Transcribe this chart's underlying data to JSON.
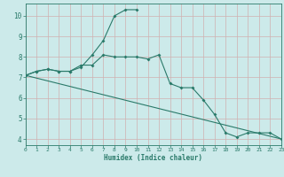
{
  "line1_x": [
    0,
    1,
    2,
    3,
    4,
    5,
    6,
    7,
    8,
    9,
    10,
    11,
    12,
    13,
    14,
    15,
    16,
    17,
    18,
    19,
    20,
    21,
    22,
    23
  ],
  "line1_y": [
    7.1,
    7.3,
    7.4,
    7.3,
    7.3,
    7.6,
    7.6,
    8.1,
    8.0,
    8.0,
    8.0,
    7.9,
    8.1,
    6.7,
    6.5,
    6.5,
    5.9,
    5.2,
    4.3,
    4.1,
    4.3,
    4.3,
    4.3,
    4.0
  ],
  "line2_x": [
    0,
    1,
    2,
    3,
    4,
    5,
    6,
    7,
    8,
    9,
    10
  ],
  "line2_y": [
    7.1,
    7.3,
    7.4,
    7.3,
    7.3,
    7.5,
    8.1,
    8.8,
    10.0,
    10.3,
    10.3
  ],
  "line3_x": [
    0,
    23
  ],
  "line3_y": [
    7.1,
    4.0
  ],
  "color": "#2a7a6a",
  "bg_color": "#cceaea",
  "grid_color": "#b0d0d0",
  "xlabel": "Humidex (Indice chaleur)",
  "xlim": [
    0,
    23
  ],
  "ylim": [
    3.7,
    10.6
  ],
  "yticks": [
    4,
    5,
    6,
    7,
    8,
    9,
    10
  ],
  "xticks": [
    0,
    1,
    2,
    3,
    4,
    5,
    6,
    7,
    8,
    9,
    10,
    11,
    12,
    13,
    14,
    15,
    16,
    17,
    18,
    19,
    20,
    21,
    22,
    23
  ]
}
